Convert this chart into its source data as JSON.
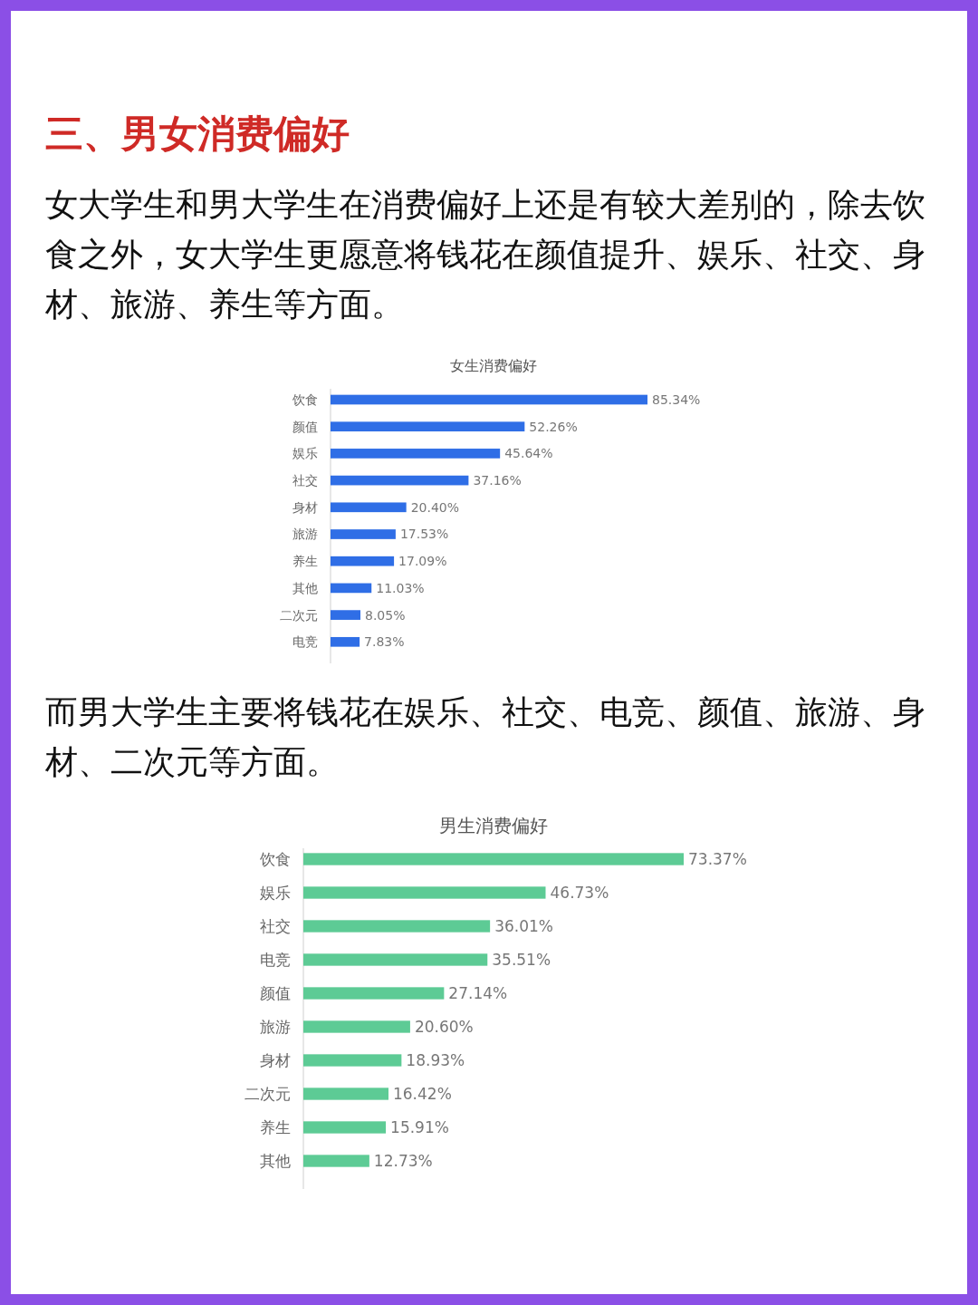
{
  "chart_data": [
    {
      "type": "bar",
      "orientation": "horizontal",
      "title": "女生消费偏好",
      "color": "#2f6ee6",
      "annotations": [
        "三、男女消费偏好",
        "女大学生和男大学生在消费偏好上还是有较大差别的，除去饮食之外，女大学生更愿意将钱花在颜值提升、娱乐、社交、身材、旅游、养生等方面。"
      ],
      "categories": [
        "饮食",
        "颜值",
        "娱乐",
        "社交",
        "身材",
        "旅游",
        "养生",
        "其他",
        "二次元",
        "电竞"
      ],
      "values": [
        85.34,
        52.26,
        45.64,
        37.16,
        20.4,
        17.53,
        17.09,
        11.03,
        8.05,
        7.83
      ],
      "value_labels": [
        "85.34%",
        "52.26%",
        "45.64%",
        "37.16%",
        "20.40%",
        "17.53%",
        "17.09%",
        "11.03%",
        "8.05%",
        "7.83%"
      ]
    },
    {
      "type": "bar",
      "orientation": "horizontal",
      "title": "男生消费偏好",
      "color": "#5dcb95",
      "annotations": [
        "而男大学生主要将钱花在娱乐、社交、电竞、颜值、旅游、身材、二次元等方面。"
      ],
      "categories": [
        "饮食",
        "娱乐",
        "社交",
        "电竞",
        "颜值",
        "旅游",
        "身材",
        "二次元",
        "养生",
        "其他"
      ],
      "values": [
        73.37,
        46.73,
        36.01,
        35.51,
        27.14,
        20.6,
        18.93,
        16.42,
        15.91,
        12.73
      ],
      "value_labels": [
        "73.37%",
        "46.73%",
        "36.01%",
        "35.51%",
        "27.14%",
        "20.60%",
        "18.93%",
        "16.42%",
        "15.91%",
        "12.73%"
      ]
    }
  ]
}
